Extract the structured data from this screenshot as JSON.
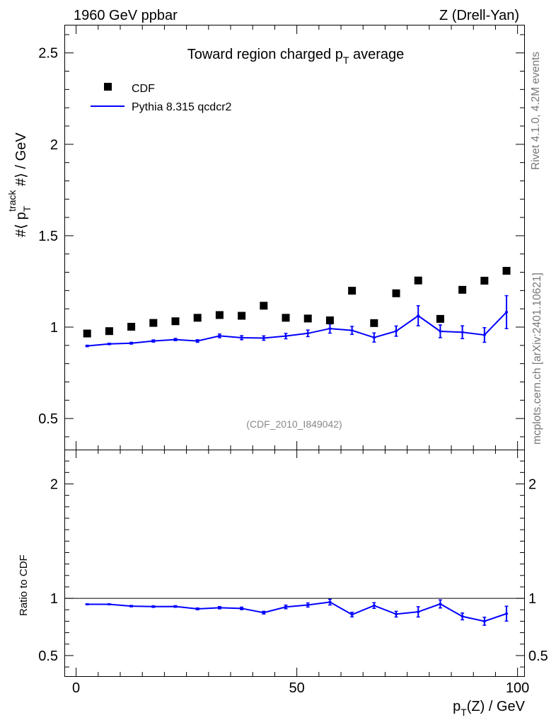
{
  "header": {
    "left": "1960 GeV ppbar",
    "right": "Z (Drell-Yan)"
  },
  "side_labels": {
    "rivet": "Rivet 4.1.0,  4.2M events",
    "mcplots": "mcplots.cern.ch [arXiv:2401.10621]"
  },
  "chart_data": {
    "type": "scatter",
    "title": "Toward region charged p_T average",
    "analysis_id": "(CDF_2010_I849042)",
    "xlabel": "p_T(Z) / GeV",
    "ylabel": "#⟨ p_T^track #⟩ / GeV",
    "ratio_ylabel": "Ratio to CDF",
    "xlim": [
      -2.5,
      101.5
    ],
    "ylim": [
      0.33,
      2.65
    ],
    "ratio_ylim": [
      0.32,
      2.3
    ],
    "x_ticks": [
      "0",
      "50",
      "100"
    ],
    "y_ticks": [
      "0.5",
      "1",
      "1.5",
      "2",
      "2.5"
    ],
    "ratio_y_ticks": [
      "0.5",
      "1",
      "2"
    ],
    "x": [
      2.5,
      7.5,
      12.5,
      17.5,
      22.5,
      27.5,
      32.5,
      37.5,
      42.5,
      47.5,
      52.5,
      57.5,
      62.5,
      67.5,
      72.5,
      77.5,
      82.5,
      87.5,
      92.5,
      97.5
    ],
    "series": [
      {
        "name": "CDF",
        "style": "markers",
        "color": "#000000",
        "values": [
          0.965,
          0.978,
          1.002,
          1.023,
          1.032,
          1.051,
          1.066,
          1.062,
          1.117,
          1.051,
          1.047,
          1.037,
          1.199,
          1.022,
          1.185,
          1.255,
          1.045,
          1.204,
          1.254,
          1.308
        ]
      },
      {
        "name": "Pythia 8.315 qcdcr2",
        "style": "line",
        "color": "#0000ff",
        "values": [
          0.897,
          0.908,
          0.912,
          0.924,
          0.932,
          0.924,
          0.952,
          0.942,
          0.94,
          0.951,
          0.966,
          0.992,
          0.982,
          0.943,
          0.978,
          1.062,
          0.977,
          0.972,
          0.957,
          1.082
        ],
        "errors": [
          0.004,
          0.004,
          0.005,
          0.006,
          0.006,
          0.007,
          0.01,
          0.011,
          0.012,
          0.015,
          0.018,
          0.025,
          0.022,
          0.025,
          0.028,
          0.055,
          0.035,
          0.035,
          0.04,
          0.09
        ]
      }
    ],
    "ratio": {
      "reference": 1.0,
      "values": [
        0.948,
        0.948,
        0.932,
        0.928,
        0.929,
        0.908,
        0.918,
        0.912,
        0.875,
        0.925,
        0.942,
        0.967,
        0.858,
        0.937,
        0.862,
        0.882,
        0.951,
        0.842,
        0.8,
        0.866
      ],
      "errors": [
        0.004,
        0.004,
        0.006,
        0.007,
        0.007,
        0.008,
        0.01,
        0.011,
        0.012,
        0.016,
        0.018,
        0.025,
        0.02,
        0.025,
        0.025,
        0.045,
        0.035,
        0.03,
        0.035,
        0.065
      ]
    }
  }
}
